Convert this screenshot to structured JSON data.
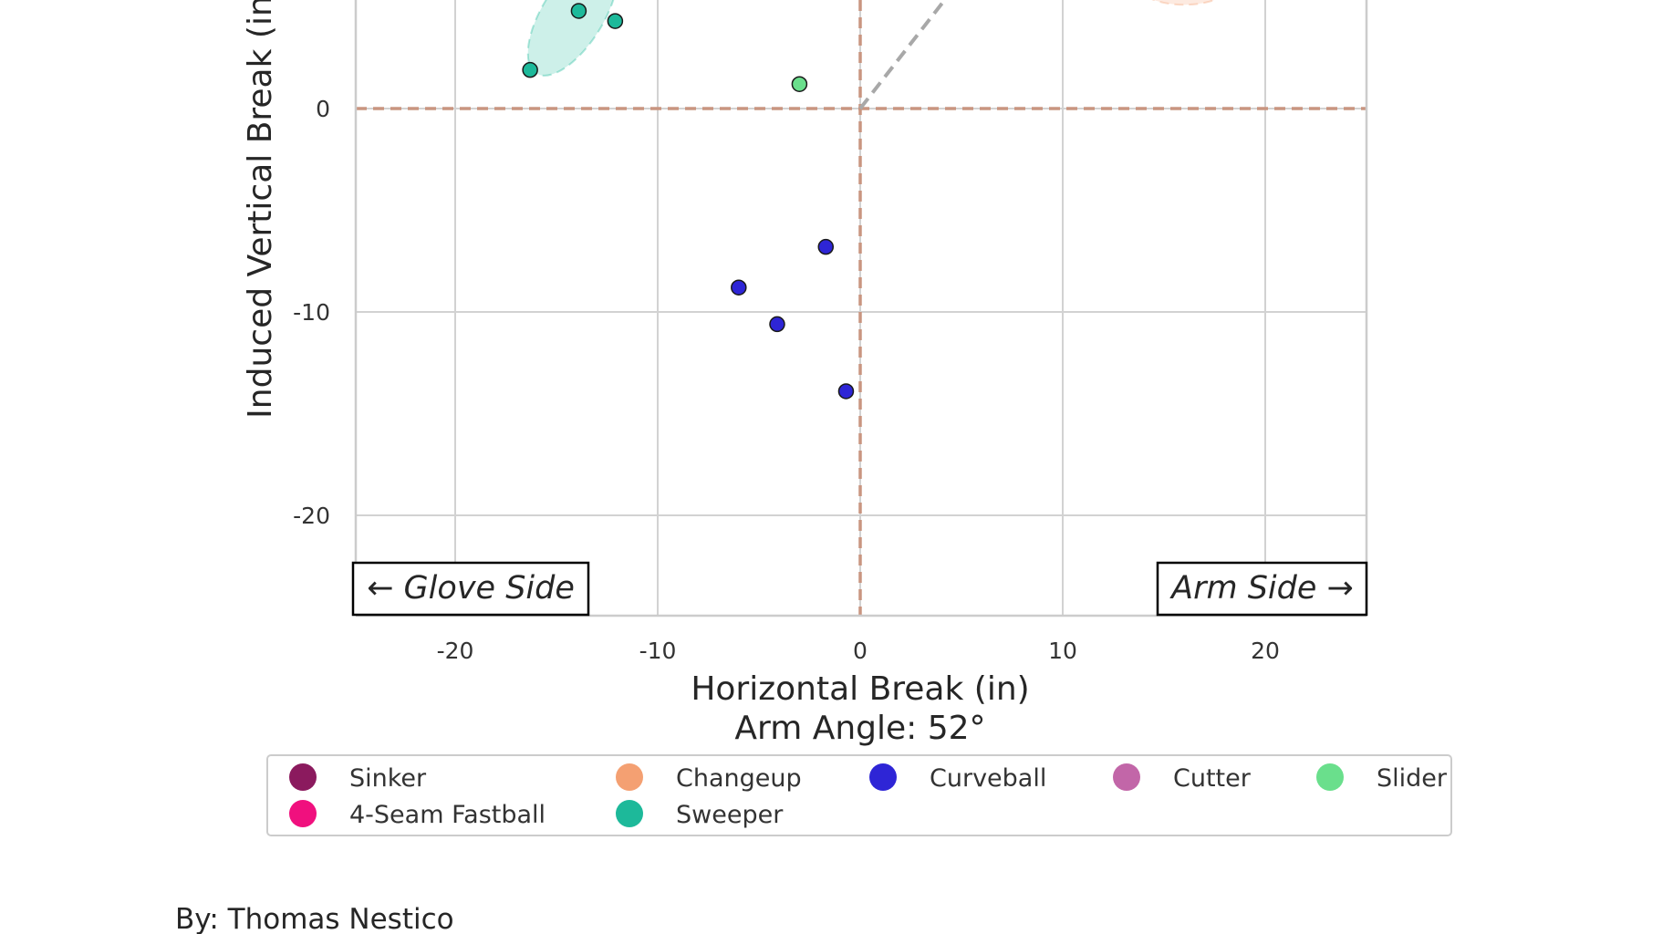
{
  "chart_data": {
    "type": "scatter",
    "xlabel": "Horizontal Break (in)",
    "subtitle": "Arm Angle: 52°",
    "ylabel": "Induced Vertical Break (in)",
    "xlim": [
      -25,
      25
    ],
    "ylim": [
      -25,
      5.5
    ],
    "xticks": [
      -20,
      -10,
      0,
      10,
      20
    ],
    "yticks": [
      -20,
      -10,
      0
    ],
    "grid": true,
    "arm_angle_deg": 52,
    "side_labels": {
      "glove": "← Glove Side",
      "arm": "Arm Side →"
    },
    "legend_position": "bottom",
    "legend": [
      {
        "name": "Sinker",
        "color": "#8B1A5E"
      },
      {
        "name": "Changeup",
        "color": "#F4A072"
      },
      {
        "name": "Curveball",
        "color": "#2E25D6"
      },
      {
        "name": "Cutter",
        "color": "#C266A8"
      },
      {
        "name": "Slider",
        "color": "#6ADF8C"
      },
      {
        "name": "4-Seam Fastball",
        "color": "#F0107E"
      },
      {
        "name": "Sweeper",
        "color": "#1DB99A"
      }
    ],
    "series": [
      {
        "name": "Sweeper",
        "color": "#1DB99A",
        "points": [
          [
            -16.3,
            1.9
          ],
          [
            -13.9,
            4.8
          ],
          [
            -12.1,
            4.3
          ]
        ],
        "ellipse": {
          "cx": -14.2,
          "cy": 4.6,
          "rx": 3.4,
          "ry": 1.5,
          "angle_deg": 58
        }
      },
      {
        "name": "Slider",
        "color": "#6ADF8C",
        "points": [
          [
            -3.0,
            1.2
          ]
        ]
      },
      {
        "name": "Curveball",
        "color": "#2E25D6",
        "points": [
          [
            -1.7,
            -6.8
          ],
          [
            -6.0,
            -8.8
          ],
          [
            -4.1,
            -10.6
          ],
          [
            -0.7,
            -13.9
          ]
        ]
      },
      {
        "name": "Changeup",
        "color": "#F4A072",
        "points": [],
        "ellipse": {
          "cx": 16.0,
          "cy": 6.2,
          "rx": 2.4,
          "ry": 1.1,
          "angle_deg": 0
        }
      }
    ]
  },
  "footer": {
    "credit": "By: Thomas Nestico"
  }
}
